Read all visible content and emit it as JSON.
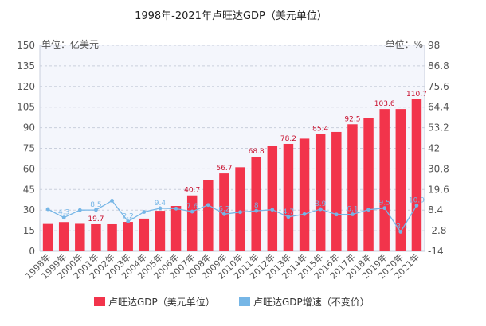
{
  "chart_data": {
    "type": "bar",
    "title": "1998年-2021年卢旺达GDP（美元单位）",
    "left_unit": "单位：亿美元",
    "right_unit": "单位：%",
    "categories": [
      "1998年",
      "1999年",
      "2000年",
      "2001年",
      "2002年",
      "2003年",
      "2004年",
      "2005年",
      "2006年",
      "2007年",
      "2008年",
      "2009年",
      "2010年",
      "2011年",
      "2012年",
      "2013年",
      "2014年",
      "2015年",
      "2016年",
      "2017年",
      "2018年",
      "2019年",
      "2020年",
      "2021年"
    ],
    "y_left": {
      "min": 0,
      "max": 150,
      "ticks": [
        "0",
        "15",
        "30",
        "45",
        "60",
        "75",
        "90",
        "105",
        "120",
        "135",
        "150"
      ]
    },
    "y_right": {
      "min": -14,
      "max": 98,
      "ticks": [
        "-14",
        "-2.8",
        "8.4",
        "19.6",
        "30.8",
        "42",
        "53.2",
        "64.4",
        "75.6",
        "86.8",
        "98"
      ]
    },
    "series": [
      {
        "name": "卢旺达GDP（美元单位）",
        "kind": "bar",
        "color": "#f2344b",
        "values": [
          19.9,
          21.3,
          20.0,
          19.7,
          19.7,
          21.4,
          23.8,
          29.5,
          33.0,
          40.7,
          51.7,
          56.7,
          61.2,
          68.8,
          76.5,
          78.2,
          82.0,
          85.4,
          86.9,
          92.5,
          96.8,
          103.6,
          103.6,
          110.7
        ],
        "labels": [
          "",
          "",
          "",
          "19.7",
          "",
          "",
          "",
          "",
          "",
          "40.7",
          "",
          "56.7",
          "",
          "68.8",
          "",
          "78.2",
          "",
          "85.4",
          "",
          "92.5",
          "",
          "103.6",
          "",
          "110.7"
        ]
      },
      {
        "name": "卢旺达GDP增速（不变价）",
        "kind": "line",
        "color": "#76b6e6",
        "values": [
          8.9,
          4.3,
          8.4,
          8.5,
          13.5,
          2.2,
          7.4,
          9.4,
          9.2,
          7.6,
          11.2,
          6.2,
          7.3,
          8.0,
          8.6,
          4.7,
          6.2,
          8.9,
          6.0,
          6.1,
          8.6,
          9.5,
          -3.4,
          10.9
        ],
        "labels": [
          "",
          "4.3",
          "",
          "8.5",
          "",
          "2.2",
          "",
          "9.4",
          "",
          "7.6",
          "",
          "6.2",
          "",
          "8",
          "",
          "4.7",
          "",
          "8.9",
          "",
          "6.1",
          "",
          "9.5",
          "-3.4",
          "10.9"
        ]
      }
    ]
  },
  "colors": {
    "plot_background": "#f4f6fc",
    "grid": "#c9cfdc",
    "axis_text": "#555555",
    "bar_label": "#c8102e"
  }
}
